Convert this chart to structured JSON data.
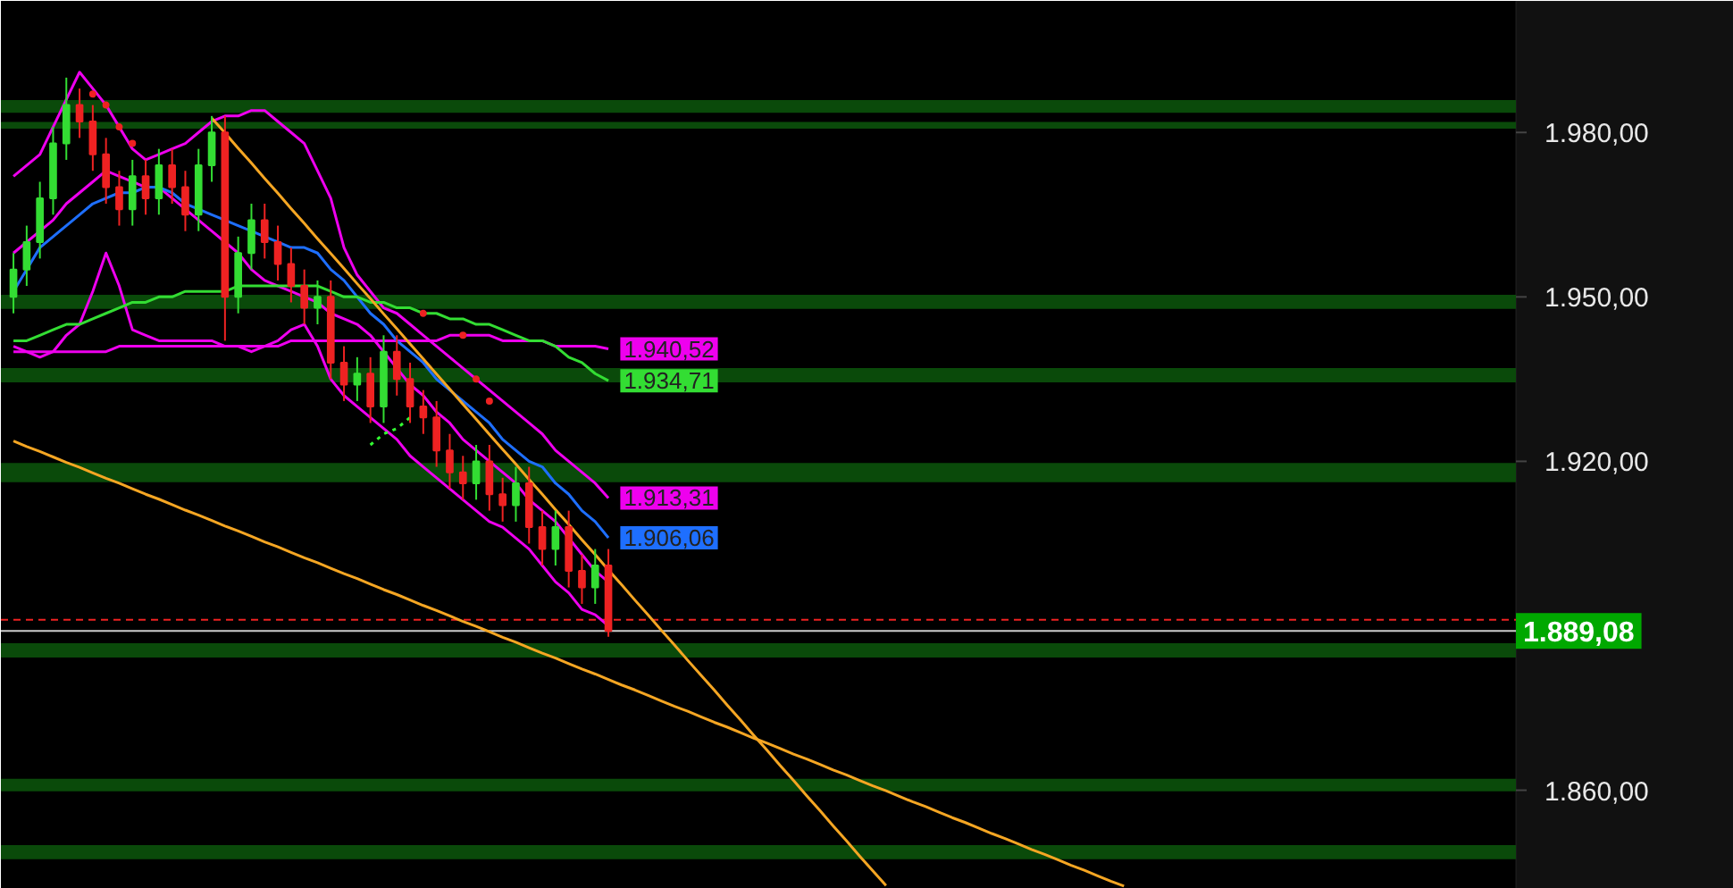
{
  "chart_data": {
    "type": "candlestick",
    "categories": [
      null,
      null,
      null,
      null,
      null,
      null,
      null,
      null,
      null,
      null,
      null,
      null,
      null,
      null,
      null,
      null,
      null,
      null,
      null,
      null,
      null,
      null,
      null,
      null,
      null,
      null,
      null,
      null,
      null,
      null,
      null,
      null,
      null,
      null,
      null,
      null,
      null,
      null,
      null,
      null,
      null,
      null,
      null,
      null,
      null,
      null,
      null,
      null,
      null,
      null,
      null,
      null,
      null,
      null,
      null,
      null,
      null,
      null,
      null,
      null,
      null,
      null,
      null,
      null,
      null,
      null,
      null,
      null,
      null,
      null,
      null,
      null,
      null,
      null,
      null,
      null,
      null,
      null,
      null,
      null,
      null,
      null,
      null,
      null,
      null
    ],
    "ohlc": [
      [
        1950,
        1958,
        1947,
        1955
      ],
      [
        1955,
        1963,
        1952,
        1960
      ],
      [
        1960,
        1971,
        1957,
        1968
      ],
      [
        1968,
        1981,
        1965,
        1978
      ],
      [
        1978,
        1990,
        1975,
        1985
      ],
      [
        1985,
        1988,
        1979,
        1982
      ],
      [
        1982,
        1985,
        1973,
        1976
      ],
      [
        1976,
        1979,
        1967,
        1970
      ],
      [
        1970,
        1973,
        1963,
        1966
      ],
      [
        1966,
        1975,
        1963,
        1972
      ],
      [
        1972,
        1975,
        1965,
        1968
      ],
      [
        1968,
        1977,
        1965,
        1974
      ],
      [
        1974,
        1977,
        1967,
        1970
      ],
      [
        1970,
        1973,
        1962,
        1965
      ],
      [
        1965,
        1977,
        1962,
        1974
      ],
      [
        1974,
        1983,
        1971,
        1980
      ],
      [
        1980,
        1983,
        1942,
        1950
      ],
      [
        1950,
        1961,
        1947,
        1958
      ],
      [
        1958,
        1967,
        1955,
        1964
      ],
      [
        1964,
        1967,
        1957,
        1960
      ],
      [
        1960,
        1963,
        1953,
        1956
      ],
      [
        1956,
        1959,
        1949,
        1952
      ],
      [
        1952,
        1955,
        1945,
        1948
      ],
      [
        1948,
        1953,
        1945,
        1950
      ],
      [
        1950,
        1953,
        1935,
        1938
      ],
      [
        1938,
        1941,
        1931,
        1934
      ],
      [
        1934,
        1939,
        1931,
        1936
      ],
      [
        1936,
        1939,
        1927,
        1930
      ],
      [
        1930,
        1943,
        1927,
        1940
      ],
      [
        1940,
        1943,
        1932,
        1935
      ],
      [
        1935,
        1938,
        1927,
        1930
      ],
      [
        1930,
        1933,
        1925,
        1928
      ],
      [
        1928,
        1931,
        1919,
        1922
      ],
      [
        1922,
        1925,
        1915,
        1918
      ],
      [
        1918,
        1921,
        1913,
        1916
      ],
      [
        1916,
        1923,
        1913,
        1920
      ],
      [
        1920,
        1923,
        1911,
        1914
      ],
      [
        1914,
        1917,
        1909,
        1912
      ],
      [
        1912,
        1919,
        1909,
        1916
      ],
      [
        1916,
        1919,
        1905,
        1908
      ],
      [
        1908,
        1911,
        1901,
        1904
      ],
      [
        1904,
        1911,
        1901,
        1908
      ],
      [
        1908,
        1911,
        1897,
        1900
      ],
      [
        1900,
        1903,
        1894,
        1897
      ],
      [
        1897,
        1904,
        1894,
        1901
      ],
      [
        1901,
        1904,
        1888,
        1889.08
      ],
      null,
      null,
      null,
      null,
      null,
      null,
      null,
      null,
      null,
      null,
      null,
      null,
      null,
      null,
      null,
      null,
      null,
      null,
      null,
      null,
      null,
      null,
      null,
      null,
      null,
      null,
      null,
      null,
      null,
      null,
      null,
      null,
      null,
      null,
      null,
      null,
      null,
      null,
      null
    ],
    "colors": [
      "#33dd33",
      "#33dd33",
      "#33dd33",
      "#33dd33",
      "#33dd33",
      "#ee2222",
      "#ee2222",
      "#ee2222",
      "#ee2222",
      "#33dd33",
      "#ee2222",
      "#33dd33",
      "#ee2222",
      "#ee2222",
      "#33dd33",
      "#33dd33",
      "#ee2222",
      "#33dd33",
      "#33dd33",
      "#ee2222",
      "#ee2222",
      "#ee2222",
      "#ee2222",
      "#33dd33",
      "#ee2222",
      "#ee2222",
      "#33dd33",
      "#ee2222",
      "#33dd33",
      "#ee2222",
      "#ee2222",
      "#ee2222",
      "#ee2222",
      "#ee2222",
      "#ee2222",
      "#33dd33",
      "#ee2222",
      "#ee2222",
      "#33dd33",
      "#ee2222",
      "#ee2222",
      "#33dd33",
      "#ee2222",
      "#ee2222",
      "#33dd33",
      "#ee2222",
      null,
      null,
      null,
      null,
      null,
      null,
      null,
      null,
      null,
      null,
      null,
      null,
      null,
      null,
      null,
      null,
      null,
      null,
      null,
      null,
      null,
      null,
      null,
      null,
      null,
      null,
      null,
      null,
      null,
      null,
      null,
      null,
      null,
      null,
      null,
      null,
      null,
      null,
      null
    ],
    "series": [
      {
        "type": "line",
        "color": "#ee00ee",
        "values": [
          1972,
          1974,
          1976,
          1981,
          1986,
          1991,
          1988,
          1985,
          1981,
          1977,
          1975,
          1976,
          1977,
          1978,
          1980,
          1982,
          1983,
          1983,
          1984,
          1984,
          1982,
          1980,
          1978,
          1973,
          1968,
          1959,
          1954,
          1951,
          1948,
          1947,
          1945,
          1943,
          1941,
          1939,
          1937,
          1935,
          1933,
          1931,
          1929,
          1927,
          1925,
          1922,
          1920,
          1918,
          1916,
          1913.31,
          null,
          null,
          null,
          null,
          null,
          null,
          null,
          null,
          null,
          null,
          null,
          null,
          null,
          null,
          null,
          null,
          null,
          null,
          null,
          null,
          null,
          null,
          null,
          null,
          null,
          null,
          null,
          null,
          null,
          null,
          null,
          null,
          null,
          null,
          null,
          null,
          null,
          null,
          null
        ],
        "value_labels": [
          null,
          null,
          null,
          null,
          null,
          null,
          null,
          null,
          null,
          null,
          null,
          null,
          null,
          null,
          null,
          null,
          null,
          null,
          null,
          null,
          null,
          null,
          null,
          null,
          null,
          null,
          null,
          null,
          null,
          null,
          null,
          null,
          null,
          null,
          null,
          null,
          null,
          null,
          null,
          null,
          null,
          null,
          null,
          null,
          null,
          "1.913,31",
          null,
          null,
          null,
          null,
          null,
          null,
          null,
          null,
          null,
          null,
          null,
          null,
          null,
          null,
          null,
          null,
          null,
          null,
          null,
          null,
          null,
          null,
          null,
          null,
          null,
          null,
          null,
          null,
          null,
          null,
          null,
          null,
          null,
          null,
          null,
          null,
          null,
          null,
          null
        ]
      },
      {
        "type": "line",
        "color": "#ee00ee",
        "values": [
          1941,
          1940,
          1939,
          1940,
          1943,
          1945,
          1951,
          1958,
          1952,
          1944,
          1943,
          1942,
          1942,
          1942,
          1942,
          1942,
          1941,
          1941,
          1940,
          1941,
          1942,
          1944,
          1945,
          1941,
          1935,
          1932,
          1930,
          1928,
          1926,
          1924,
          1921,
          1919,
          1917,
          1915,
          1913,
          1911,
          1909,
          1908,
          1906,
          1904,
          1901,
          1898,
          1896,
          1893,
          1892,
          1890,
          null,
          null,
          null,
          null,
          null,
          null,
          null,
          null,
          null,
          null,
          null,
          null,
          null,
          null,
          null,
          null,
          null,
          null,
          null,
          null,
          null,
          null,
          null,
          null,
          null,
          null,
          null,
          null,
          null,
          null,
          null,
          null,
          null,
          null,
          null,
          null,
          null,
          null,
          null
        ]
      },
      {
        "type": "line",
        "color": "#ee00ee",
        "values": [
          1958,
          1960,
          1962,
          1964,
          1967,
          1969,
          1971,
          1973,
          1972,
          1971,
          1970,
          1970,
          1968,
          1966,
          1964,
          1962,
          1960,
          1958,
          1955,
          1953,
          1952,
          1951,
          1950,
          1949,
          1947,
          1946,
          1945,
          1943,
          1940,
          1937,
          1934,
          1932,
          1929,
          1927,
          1924,
          1922,
          1920,
          1918,
          1916,
          1913,
          1911,
          1909,
          1906,
          1903,
          1900,
          1898,
          null,
          null,
          null,
          null,
          null,
          null,
          null,
          null,
          null,
          null,
          null,
          null,
          null,
          null,
          null,
          null,
          null,
          null,
          null,
          null,
          null,
          null,
          null,
          null,
          null,
          null,
          null,
          null,
          null,
          null,
          null,
          null,
          null,
          null,
          null,
          null,
          null,
          null,
          null
        ]
      },
      {
        "type": "line",
        "color": "#ee00ee",
        "values": [
          1940,
          1940,
          1940,
          1940,
          1940,
          1940,
          1940,
          1940,
          1941,
          1941,
          1941,
          1941,
          1941,
          1941,
          1941,
          1941,
          1941,
          1941,
          1941,
          1941,
          1941,
          1942,
          1942,
          1942,
          1942,
          1942,
          1942,
          1942,
          1942,
          1942,
          1942,
          1942,
          1942,
          1943,
          1943,
          1943,
          1943,
          1942,
          1942,
          1942,
          1942,
          1941,
          1941,
          1941,
          1941,
          1940.52,
          null,
          null,
          null,
          null,
          null,
          null,
          null,
          null,
          null,
          null,
          null,
          null,
          null,
          null,
          null,
          null,
          null,
          null,
          null,
          null,
          null,
          null,
          null,
          null,
          null,
          null,
          null,
          null,
          null,
          null,
          null,
          null,
          null,
          null,
          null,
          null,
          null,
          null,
          null
        ],
        "value_labels": [
          null,
          null,
          null,
          null,
          null,
          null,
          null,
          null,
          null,
          null,
          null,
          null,
          null,
          null,
          null,
          null,
          null,
          null,
          null,
          null,
          null,
          null,
          null,
          null,
          null,
          null,
          null,
          null,
          null,
          null,
          null,
          null,
          null,
          null,
          null,
          null,
          null,
          null,
          null,
          null,
          null,
          null,
          null,
          null,
          null,
          "1.940,52",
          null,
          null,
          null,
          null,
          null,
          null,
          null,
          null,
          null,
          null,
          null,
          null,
          null,
          null,
          null,
          null,
          null,
          null,
          null,
          null,
          null,
          null,
          null,
          null,
          null,
          null,
          null,
          null,
          null,
          null,
          null,
          null,
          null,
          null,
          null,
          null,
          null,
          null,
          null
        ]
      },
      {
        "type": "line",
        "color": "#1e6fff",
        "values": [
          1951,
          1955,
          1959,
          1961,
          1963,
          1965,
          1967,
          1968,
          1969,
          1969,
          1970,
          1970,
          1969,
          1967,
          1966,
          1965,
          1964,
          1963,
          1962,
          1961,
          1960,
          1959,
          1959,
          1958,
          1955,
          1953,
          1950,
          1947,
          1945,
          1942,
          1940,
          1938,
          1935,
          1933,
          1931,
          1929,
          1927,
          1924,
          1922,
          1920,
          1919,
          1916,
          1914,
          1911,
          1909,
          1906.06,
          null,
          null,
          null,
          null,
          null,
          null,
          null,
          null,
          null,
          null,
          null,
          null,
          null,
          null,
          null,
          null,
          null,
          null,
          null,
          null,
          null,
          null,
          null,
          null,
          null,
          null,
          null,
          null,
          null,
          null,
          null,
          null,
          null,
          null,
          null,
          null,
          null,
          null,
          null
        ],
        "value_labels": [
          null,
          null,
          null,
          null,
          null,
          null,
          null,
          null,
          null,
          null,
          null,
          null,
          null,
          null,
          null,
          null,
          null,
          null,
          null,
          null,
          null,
          null,
          null,
          null,
          null,
          null,
          null,
          null,
          null,
          null,
          null,
          null,
          null,
          null,
          null,
          null,
          null,
          null,
          null,
          null,
          null,
          null,
          null,
          null,
          null,
          "1.906,06",
          null,
          null,
          null,
          null,
          null,
          null,
          null,
          null,
          null,
          null,
          null,
          null,
          null,
          null,
          null,
          null,
          null,
          null,
          null,
          null,
          null,
          null,
          null,
          null,
          null,
          null,
          null,
          null,
          null,
          null,
          null,
          null,
          null,
          null,
          null,
          null,
          null,
          null,
          null
        ]
      },
      {
        "type": "line",
        "color": "#33dd33",
        "values": [
          1942,
          1942,
          1943,
          1944,
          1945,
          1945,
          1946,
          1947,
          1948,
          1949,
          1949,
          1950,
          1950,
          1951,
          1951,
          1951,
          1951,
          1952,
          1952,
          1952,
          1952,
          1952,
          1952,
          1952,
          1951,
          1950,
          1950,
          1949,
          1949,
          1948,
          1948,
          1947,
          1947,
          1946,
          1946,
          1945,
          1945,
          1944,
          1943,
          1942,
          1942,
          1941,
          1939,
          1938,
          1936,
          1934.71,
          null,
          null,
          null,
          null,
          null,
          null,
          null,
          null,
          null,
          null,
          null,
          null,
          null,
          null,
          null,
          null,
          null,
          null,
          null,
          null,
          null,
          null,
          null,
          null,
          null,
          null,
          null,
          null,
          null,
          null,
          null,
          null,
          null,
          null,
          null,
          null,
          null,
          null,
          null
        ],
        "value_labels": [
          null,
          null,
          null,
          null,
          null,
          null,
          null,
          null,
          null,
          null,
          null,
          null,
          null,
          null,
          null,
          null,
          null,
          null,
          null,
          null,
          null,
          null,
          null,
          null,
          null,
          null,
          null,
          null,
          null,
          null,
          null,
          null,
          null,
          null,
          null,
          null,
          null,
          null,
          null,
          null,
          null,
          null,
          null,
          null,
          null,
          "1.934,71",
          null,
          null,
          null,
          null,
          null,
          null,
          null,
          null,
          null,
          null,
          null,
          null,
          null,
          null,
          null,
          null,
          null,
          null,
          null,
          null,
          null,
          null,
          null,
          null,
          null,
          null,
          null,
          null,
          null,
          null,
          null,
          null,
          null,
          null,
          null,
          null,
          null,
          null,
          null
        ]
      },
      {
        "type": "line",
        "color": "#33ff33",
        "line_style": "dotted",
        "values": [
          null,
          null,
          null,
          null,
          null,
          null,
          null,
          null,
          null,
          null,
          null,
          null,
          null,
          null,
          null,
          null,
          null,
          null,
          null,
          null,
          null,
          null,
          null,
          null,
          null,
          null,
          null,
          1923,
          1925,
          1926,
          1928,
          null,
          null,
          null,
          null,
          null,
          null,
          null,
          null,
          null,
          null,
          null,
          null,
          null,
          null,
          null,
          null,
          null,
          null,
          null,
          null,
          null,
          null,
          null,
          null,
          null,
          null,
          null,
          null,
          null,
          null,
          null,
          null,
          null,
          null,
          null,
          null,
          null,
          null,
          null,
          null,
          null,
          null,
          null,
          null,
          null,
          null,
          null,
          null,
          null,
          null,
          null,
          null,
          null,
          null
        ]
      },
      {
        "type": "scatter",
        "color": "#ee2222",
        "marker": "circle",
        "values": [
          null,
          null,
          null,
          null,
          null,
          null,
          1987,
          1985,
          1981,
          1978,
          null,
          null,
          null,
          null,
          null,
          null,
          null,
          null,
          null,
          null,
          null,
          null,
          null,
          null,
          null,
          null,
          null,
          null,
          null,
          null,
          null,
          1947,
          null,
          null,
          1943,
          1935,
          1931,
          null,
          null,
          null,
          null,
          null,
          null,
          null,
          null,
          null,
          null,
          null,
          null,
          null,
          null,
          null,
          null,
          null,
          null,
          null,
          null,
          null,
          null,
          null,
          null,
          null,
          null,
          null,
          null,
          null,
          null,
          null,
          null,
          null,
          null,
          null,
          null,
          null,
          null,
          null,
          null,
          null,
          null,
          null,
          null,
          null,
          null,
          null,
          null
        ]
      },
      {
        "type": "line",
        "color": "#f5a623",
        "values": [
          null,
          null,
          null,
          null,
          null,
          null,
          null,
          null,
          null,
          null,
          null,
          null,
          null,
          null,
          null,
          1982.6,
          1979.9,
          1977.1,
          1974.4,
          1971.6,
          1968.9,
          1966.1,
          1963.4,
          1960.6,
          1957.9,
          1955.2,
          1952.4,
          1949.7,
          1946.9,
          1944.2,
          1941.4,
          1938.7,
          1935.9,
          1933.2,
          1930.4,
          1927.7,
          1924.9,
          1922.2,
          1919.5,
          1916.7,
          1914.0,
          1911.2,
          1908.5,
          1905.7,
          1903.0,
          1900.2,
          1897.5,
          1894.7,
          1892.0,
          1889.2,
          1886.5,
          1883.7,
          1881.0,
          1878.3,
          1875.5,
          1872.8,
          1870.0,
          1867.3,
          1864.5,
          1861.8,
          1859.0,
          1856.3,
          1853.5,
          1850.8,
          1848.0,
          1845.3,
          1842.6,
          null,
          null,
          null,
          null,
          null,
          null,
          null,
          null,
          null,
          null,
          null,
          null,
          null,
          null,
          null,
          null,
          null,
          null
        ]
      },
      {
        "type": "line",
        "color": "#f5a623",
        "values": [
          1923.7,
          1922.7,
          1921.8,
          1920.8,
          1919.8,
          1918.9,
          1917.9,
          1916.9,
          1916.0,
          1915.0,
          1914.0,
          1913.1,
          1912.1,
          1911.1,
          1910.2,
          1909.2,
          1908.2,
          1907.3,
          1906.3,
          1905.3,
          1904.4,
          1903.4,
          1902.4,
          1901.5,
          1900.5,
          1899.5,
          1898.6,
          1897.6,
          1896.6,
          1895.7,
          1894.7,
          1893.7,
          1892.8,
          1891.8,
          1890.8,
          1889.9,
          1888.9,
          1887.9,
          1887.0,
          1886.0,
          1885.0,
          1884.1,
          1883.1,
          1882.1,
          1881.2,
          1880.2,
          1879.2,
          1878.3,
          1877.3,
          1876.3,
          1875.3,
          1874.4,
          1873.4,
          1872.4,
          1871.5,
          1870.5,
          1869.5,
          1868.6,
          1867.6,
          1866.6,
          1865.7,
          1864.7,
          1863.7,
          1862.8,
          1861.8,
          1860.8,
          1859.9,
          1858.9,
          1857.9,
          1857.0,
          1856.0,
          1855.0,
          1854.1,
          1853.1,
          1852.1,
          1851.2,
          1850.2,
          1849.2,
          1848.3,
          1847.3,
          1846.3,
          1845.4,
          1844.4,
          1843.4,
          1842.5
        ]
      }
    ],
    "ylim": [
      1842,
      2004
    ],
    "yticks": [
      {
        "value": 1980,
        "label": "1.980,00"
      },
      {
        "value": 1950,
        "label": "1.950,00"
      },
      {
        "value": 1920,
        "label": "1.920,00"
      },
      {
        "value": 1860,
        "label": "1.860,00"
      }
    ],
    "tick_labels": "y",
    "bands": [
      {
        "axis": "y",
        "from": 1983.6,
        "to": 1985.9,
        "color": "#0a4a0a"
      },
      {
        "axis": "y",
        "from": 1980.7,
        "to": 1981.9,
        "color": "#0a4a0a"
      },
      {
        "axis": "y",
        "from": 1947.8,
        "to": 1950.4,
        "color": "#0a4a0a"
      },
      {
        "axis": "y",
        "from": 1934.4,
        "to": 1937.0,
        "color": "#0a4a0a"
      },
      {
        "axis": "y",
        "from": 1916.2,
        "to": 1919.7,
        "color": "#0a4a0a"
      },
      {
        "axis": "y",
        "from": 1884.2,
        "to": 1886.8,
        "color": "#0a4a0a"
      },
      {
        "axis": "y",
        "from": 1859.8,
        "to": 1862.1,
        "color": "#0a4a0a"
      },
      {
        "axis": "y",
        "from": 1847.4,
        "to": 1850.0,
        "color": "#0a4a0a"
      }
    ],
    "ref_lines": [
      {
        "axis": "y",
        "value": 1891.1,
        "color": "#ee2222",
        "line_style": "dashed"
      },
      {
        "axis": "y",
        "value": 1889.08,
        "label": "1.889,08",
        "color": "#cccccc"
      }
    ]
  }
}
